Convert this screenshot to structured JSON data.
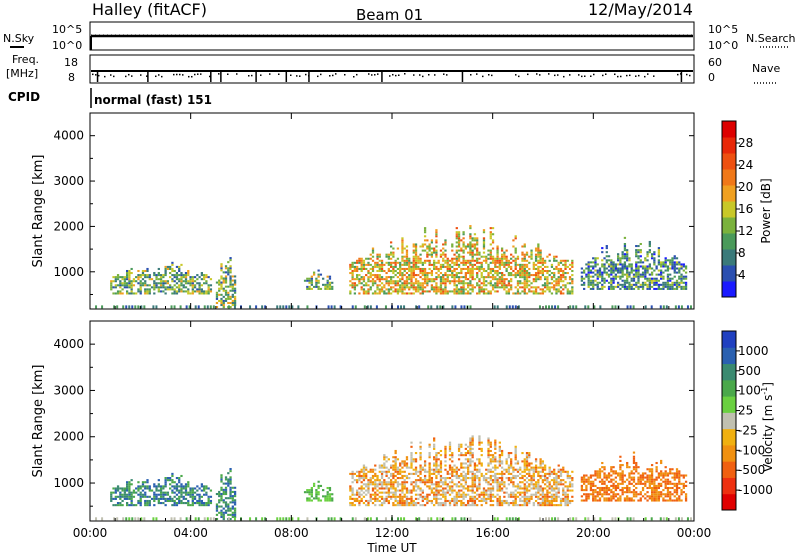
{
  "header": {
    "station": "Halley (fitACF)",
    "beam": "Beam 01",
    "date": "12/May/2014"
  },
  "noise_panel": {
    "left_label": "N.Sky",
    "right_label": "N.Search",
    "tick_top": "10^5",
    "tick_bottom": "10^0"
  },
  "freq_panel": {
    "left_label_1": "Freq.",
    "left_label_2": "[MHz]",
    "left_tick_top": "18",
    "left_tick_bottom": "8",
    "right_label": "Nave",
    "right_tick_top": "60",
    "right_tick_bottom": "0"
  },
  "cpid": {
    "label": "CPID",
    "value": "normal (fast) 151"
  },
  "chart_data": [
    {
      "type": "heatmap",
      "panel": "power",
      "ylabel": "Slant Range [km]",
      "ylim": [
        180,
        4500
      ],
      "y_ticks": [
        "1000",
        "2000",
        "3000",
        "4000"
      ],
      "x_ticks": [
        "00:00",
        "04:00",
        "08:00",
        "12:00",
        "16:00",
        "20:00",
        "00:00"
      ],
      "colorbar": {
        "label": "Power [dB]",
        "ticks": [
          "4",
          "8",
          "12",
          "16",
          "20",
          "24",
          "28"
        ],
        "colors": [
          "#1a1aff",
          "#2a4fb0",
          "#3a7a7a",
          "#4a9a5a",
          "#7ab23c",
          "#c8c828",
          "#f0a020",
          "#f07818",
          "#ee5010",
          "#e82808",
          "#dd0000"
        ]
      },
      "echo_regions": [
        {
          "t_start": 0.8,
          "t_end": 4.8,
          "range_low": 500,
          "range_high": 1300,
          "level": "12-20"
        },
        {
          "t_start": 5.0,
          "t_end": 5.8,
          "range_low": 200,
          "range_high": 1500,
          "level": "8-16"
        },
        {
          "t_start": 8.5,
          "t_end": 9.6,
          "range_low": 600,
          "range_high": 1100,
          "level": "12-20"
        },
        {
          "t_start": 10.3,
          "t_end": 19.2,
          "range_low": 500,
          "range_high": 2100,
          "level": "16-28"
        },
        {
          "t_start": 19.5,
          "t_end": 23.7,
          "range_low": 600,
          "range_high": 1800,
          "level": "8-16"
        }
      ]
    },
    {
      "type": "heatmap",
      "panel": "velocity",
      "xlabel": "Time UT",
      "ylabel": "Slant Range [km]",
      "ylim": [
        180,
        4500
      ],
      "y_ticks": [
        "1000",
        "2000",
        "3000",
        "4000"
      ],
      "x_ticks": [
        "00:00",
        "04:00",
        "08:00",
        "12:00",
        "16:00",
        "20:00",
        "00:00"
      ],
      "colorbar": {
        "label": "Velocity [m s",
        "label_sup": "-1",
        "label_close": "]",
        "ticks": [
          "1000",
          "500",
          "100",
          "25",
          "-25",
          "-100",
          "-500",
          "-1000"
        ],
        "colors": [
          "#2040c0",
          "#2a60b0",
          "#3a8a70",
          "#4aa84a",
          "#6ad040",
          "#c0c0b0",
          "#f0b010",
          "#f09010",
          "#f06010",
          "#ee3010",
          "#e00000"
        ]
      },
      "echo_regions": [
        {
          "t_start": 0.8,
          "t_end": 4.8,
          "range_low": 500,
          "range_high": 1300,
          "velocity": "100 to 500"
        },
        {
          "t_start": 5.0,
          "t_end": 5.8,
          "range_low": 200,
          "range_high": 1500,
          "velocity": "100 to 500"
        },
        {
          "t_start": 8.5,
          "t_end": 9.6,
          "range_low": 600,
          "range_high": 1100,
          "velocity": "25 to 100"
        },
        {
          "t_start": 10.3,
          "t_end": 19.2,
          "range_low": 500,
          "range_high": 2100,
          "velocity": "-25 to -500"
        },
        {
          "t_start": 19.5,
          "t_end": 23.7,
          "range_low": 600,
          "range_high": 1800,
          "velocity": "-100 to -500"
        }
      ]
    }
  ]
}
